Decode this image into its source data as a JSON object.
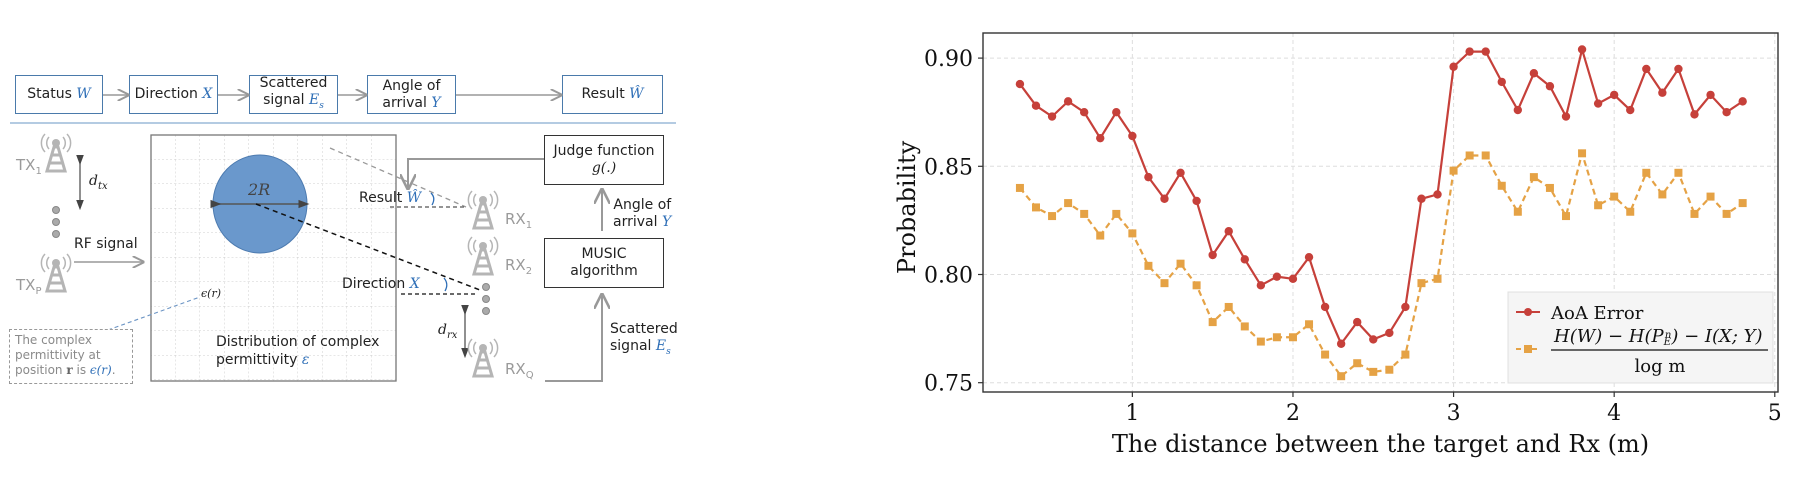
{
  "diagram": {
    "flow": [
      {
        "label": "Status",
        "var": "W"
      },
      {
        "label": "Direction",
        "var": "X"
      },
      {
        "label": "Scattered signal",
        "var": "Es"
      },
      {
        "label": "Angle of arrival",
        "var": "Y"
      },
      {
        "label": "Result",
        "var": "Ŵ"
      }
    ],
    "flow_text": {
      "status": "Status ",
      "direction": "Direction ",
      "scattered_1": "Scattered",
      "scattered_2": "signal ",
      "aoa_1": "Angle of",
      "aoa_2": "arrival ",
      "result": "Result "
    },
    "vars": {
      "W": "W",
      "X": "X",
      "E": "E",
      "s": "s",
      "Y": "Y",
      "What": "Ŵ"
    },
    "tx": {
      "tx1": "TX",
      "tx1_sub": "1",
      "txp": "TX",
      "txp_sub": "P",
      "dtx": "d",
      "dtx_sub": "tx",
      "rf_signal": "RF signal"
    },
    "rx": {
      "rx1": "RX",
      "rx1_sub": "1",
      "rx2": "RX",
      "rx2_sub": "2",
      "rxq": "RX",
      "rxq_sub": "Q",
      "drx": "d",
      "drx_sub": "rx"
    },
    "area": {
      "circle_label": "2R",
      "dist_1": "Distribution of complex",
      "dist_2": "permittivity ",
      "dist_var": "ε",
      "eps_r": "ϵ(r)",
      "result_label": "Result ",
      "direction_label": "Direction "
    },
    "note": {
      "line1": "The complex",
      "line2": "permittivity at",
      "line3_a": "position ",
      "line3_r": "r",
      "line3_b": " is ",
      "line3_eps": "ϵ(r)",
      "line3_c": "."
    },
    "judge": {
      "line1": "Judge function",
      "line2": "g(.)"
    },
    "music": {
      "line1": "MUSIC",
      "line2": "algorithm"
    },
    "aoa_side": {
      "line1": "Angle of",
      "line2": "arrival "
    },
    "scat_side": {
      "line1": "Scattered",
      "line2": "signal "
    },
    "colors": {
      "circle": "#6a98cc",
      "accent": "#2f6fb7",
      "flow_border": "#4a7aab",
      "antenna": "#b5b5b5"
    }
  },
  "chart_data": {
    "type": "line",
    "title": "",
    "xlabel": "The distance between the target and Rx (m)",
    "ylabel": "Probability",
    "xlim": [
      0.07,
      5.02
    ],
    "ylim": [
      0.7457,
      0.9116
    ],
    "xticks": [
      1,
      2,
      3,
      4,
      5
    ],
    "xtick_labels": [
      "1",
      "2",
      "3",
      "4",
      "5"
    ],
    "yticks": [
      0.75,
      0.8,
      0.85,
      0.9
    ],
    "ytick_labels": [
      "0.75",
      "0.80",
      "0.85",
      "0.90"
    ],
    "grid": true,
    "legend_position": "lower-right",
    "x": [
      0.3,
      0.4,
      0.5,
      0.6,
      0.7,
      0.8,
      0.9,
      1.0,
      1.1,
      1.2,
      1.3,
      1.4,
      1.5,
      1.6,
      1.7,
      1.8,
      1.9,
      2.0,
      2.1,
      2.2,
      2.3,
      2.4,
      2.5,
      2.6,
      2.7,
      2.8,
      2.9,
      3.0,
      3.1,
      3.2,
      3.3,
      3.4,
      3.5,
      3.6,
      3.7,
      3.8,
      3.9,
      4.0,
      4.1,
      4.2,
      4.3,
      4.4,
      4.5,
      4.6,
      4.7,
      4.8
    ],
    "series": [
      {
        "name": "AoA Error",
        "legend_text": "AoA Error",
        "color": "#c6403a",
        "style": "solid-circle",
        "values": [
          0.888,
          0.878,
          0.873,
          0.88,
          0.875,
          0.863,
          0.875,
          0.864,
          0.845,
          0.835,
          0.847,
          0.834,
          0.809,
          0.82,
          0.807,
          0.795,
          0.799,
          0.798,
          0.808,
          0.785,
          0.768,
          0.778,
          0.77,
          0.773,
          0.785,
          0.835,
          0.837,
          0.896,
          0.903,
          0.903,
          0.889,
          0.876,
          0.893,
          0.887,
          0.873,
          0.904,
          0.879,
          0.883,
          0.876,
          0.895,
          0.884,
          0.895,
          0.874,
          0.883,
          0.875,
          0.88
        ]
      },
      {
        "name": "(H(W) − H(P_E^n) − I(X;Y)) / log m",
        "legend_numerator": "H(W) − H(P",
        "legend_sub": "E",
        "legend_sup": "n",
        "legend_numerator_tail": ") − I(X; Y)",
        "legend_denominator": "log m",
        "color": "#e5a245",
        "style": "dashed-square",
        "values": [
          0.84,
          0.831,
          0.827,
          0.833,
          0.828,
          0.818,
          0.828,
          0.819,
          0.804,
          0.796,
          0.805,
          0.795,
          0.778,
          0.785,
          0.776,
          0.769,
          0.771,
          0.771,
          0.777,
          0.763,
          0.753,
          0.759,
          0.755,
          0.756,
          0.763,
          0.796,
          0.798,
          0.848,
          0.855,
          0.855,
          0.841,
          0.829,
          0.845,
          0.84,
          0.827,
          0.856,
          0.832,
          0.836,
          0.829,
          0.847,
          0.837,
          0.847,
          0.828,
          0.836,
          0.828,
          0.833
        ]
      }
    ]
  }
}
